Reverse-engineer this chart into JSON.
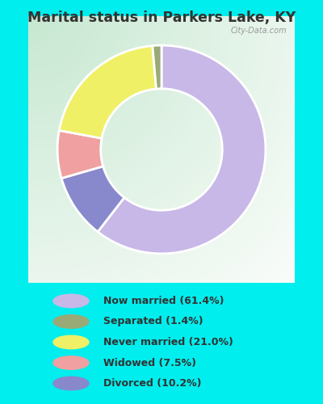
{
  "title": "Marital status in Parkers Lake, KY",
  "title_color": "#333333",
  "background_cyan": "#00EEEE",
  "chart_bg_color": "#d8eedd",
  "slices": [
    {
      "label": "Now married (61.4%)",
      "value": 61.4,
      "color": "#c8b8e8"
    },
    {
      "label": "Divorced (10.2%)",
      "value": 10.2,
      "color": "#8888cc"
    },
    {
      "label": "Widowed (7.5%)",
      "value": 7.5,
      "color": "#f0a0a0"
    },
    {
      "label": "Never married (21.0%)",
      "value": 21.0,
      "color": "#f0f066"
    },
    {
      "label": "Separated (1.4%)",
      "value": 1.4,
      "color": "#99aa77"
    }
  ],
  "legend_items": [
    {
      "label": "Now married (61.4%)",
      "color": "#c8b8e8"
    },
    {
      "label": "Separated (1.4%)",
      "color": "#99aa77"
    },
    {
      "label": "Never married (21.0%)",
      "color": "#f0f066"
    },
    {
      "label": "Widowed (7.5%)",
      "color": "#f0a0a0"
    },
    {
      "label": "Divorced (10.2%)",
      "color": "#8888cc"
    }
  ],
  "watermark": "City-Data.com",
  "figsize": [
    4.0,
    5.0
  ],
  "dpi": 100
}
